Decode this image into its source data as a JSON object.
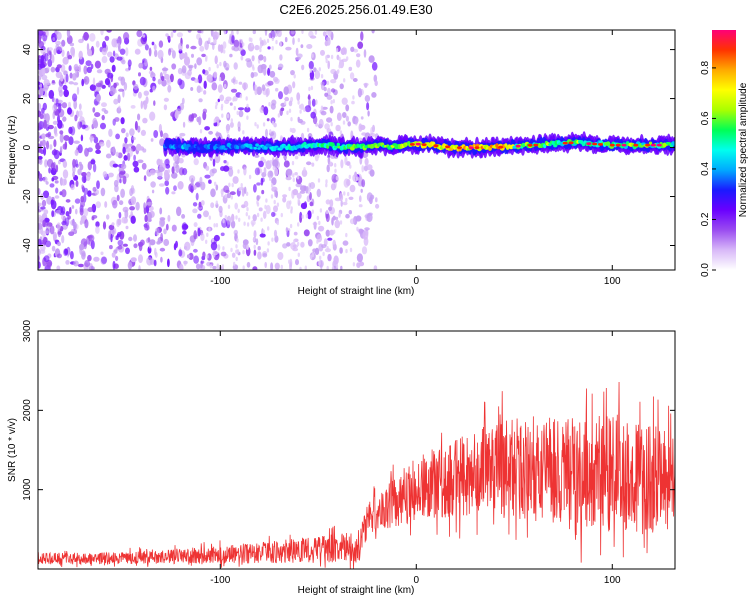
{
  "figure": {
    "title": "C2E6.2025.256.01.49.E30"
  },
  "chart_data": [
    {
      "type": "heatmap",
      "title": "C2E6.2025.256.01.49.E30",
      "xlabel": "Height of straight line (km)",
      "ylabel": "Frequency (Hz)",
      "xlim": [
        -193,
        132
      ],
      "ylim": [
        -50,
        48
      ],
      "xticks": [
        -100,
        0,
        100
      ],
      "yticks": [
        -40,
        -20,
        0,
        20,
        40
      ],
      "x_tick_labels": [
        "-100",
        "0",
        "100"
      ],
      "y_tick_labels": [
        "-40",
        "-20",
        "0",
        "20",
        "40"
      ],
      "colorbar": {
        "label": "Normalized spectral amplitude",
        "range": [
          0,
          0.95
        ],
        "ticks": [
          0.0,
          0.2,
          0.4,
          0.6,
          0.8
        ],
        "tick_labels": [
          "0.0",
          "0.2",
          "0.4",
          "0.6",
          "0.8"
        ],
        "colormap": [
          "#ffffff",
          "#d8b8f8",
          "#9a4cf0",
          "#6a00ff",
          "#1a1aff",
          "#00aaff",
          "#00ffee",
          "#00ff55",
          "#aaff00",
          "#ffff00",
          "#ffaa00",
          "#ff3300",
          "#ff0077"
        ]
      },
      "meteor_trace": {
        "start_km": -128,
        "end_km": 132,
        "center_freq_hz": [
          [
            -128,
            1
          ],
          [
            -110,
            0
          ],
          [
            -90,
            0.5
          ],
          [
            -70,
            0
          ],
          [
            -50,
            1
          ],
          [
            -30,
            0
          ],
          [
            -20,
            1
          ],
          [
            -10,
            0.5
          ],
          [
            0,
            1.5
          ],
          [
            20,
            0
          ],
          [
            40,
            0
          ],
          [
            60,
            1
          ],
          [
            80,
            2
          ],
          [
            100,
            1
          ],
          [
            120,
            1
          ],
          [
            132,
            1
          ]
        ],
        "peak_amplitude_km": [
          20,
          50
        ],
        "peak_amplitude": 0.9
      },
      "noise_region_km": [
        -193,
        -30
      ],
      "grid": false
    },
    {
      "type": "line",
      "xlabel": "Height of straight line (km)",
      "ylabel": "SNR (10 * v/v)",
      "xlim": [
        -193,
        132
      ],
      "ylim": [
        0,
        3000
      ],
      "xticks": [
        -100,
        0,
        100
      ],
      "yticks": [
        1000,
        2000,
        3000
      ],
      "x_tick_labels": [
        "-100",
        "0",
        "100"
      ],
      "y_tick_labels": [
        "1000",
        "2000",
        "3000"
      ],
      "color": "#ee3333",
      "series": [
        {
          "envelope_x": [
            -193,
            -150,
            -130,
            -100,
            -80,
            -60,
            -45,
            -30,
            -25,
            -20,
            -10,
            0,
            10,
            20,
            30,
            40,
            50,
            60,
            70,
            80,
            90,
            100,
            110,
            120,
            132
          ],
          "baseline": [
            120,
            130,
            140,
            170,
            190,
            220,
            240,
            250,
            600,
            700,
            850,
            950,
            1050,
            1100,
            1150,
            1200,
            1200,
            1150,
            1150,
            1150,
            1100,
            1150,
            1100,
            1050,
            1050
          ],
          "spread": [
            150,
            150,
            170,
            220,
            260,
            320,
            350,
            380,
            450,
            500,
            700,
            800,
            900,
            1000,
            1100,
            1200,
            1300,
            1300,
            1400,
            1450,
            1500,
            1500,
            1400,
            1350,
            1200
          ]
        }
      ],
      "grid": false
    }
  ]
}
